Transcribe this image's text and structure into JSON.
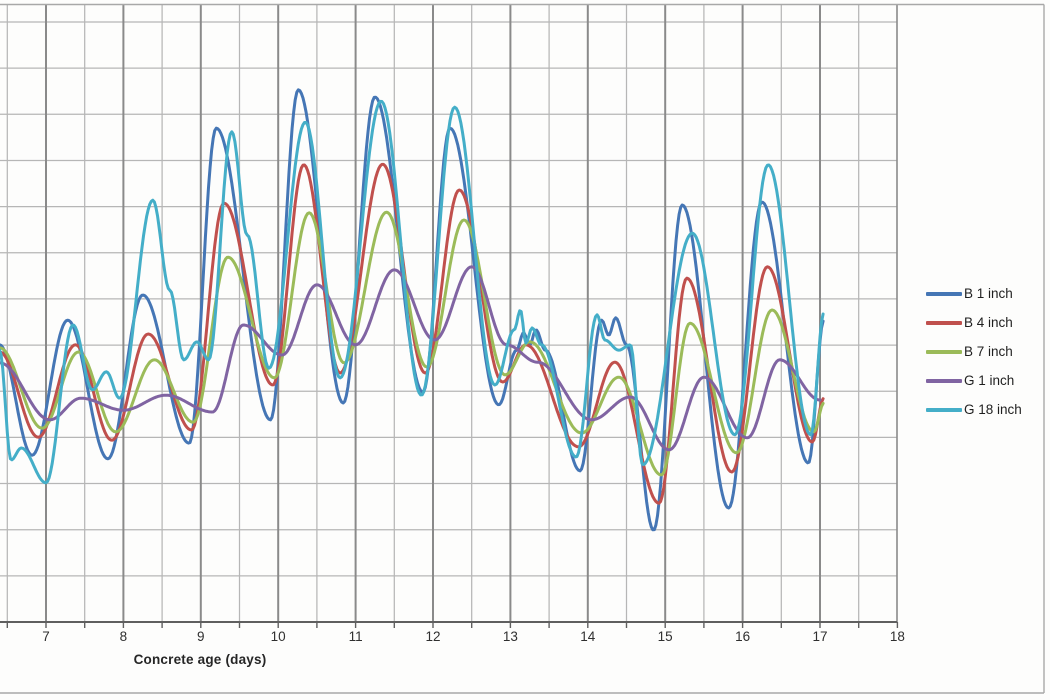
{
  "chart_data": {
    "type": "line",
    "title": "",
    "xlabel": "Concrete age (days)",
    "ylabel": "",
    "x_axis": {
      "ticks": [
        "7",
        "8",
        "9",
        "10",
        "11",
        "12",
        "13",
        "14",
        "15",
        "16",
        "17",
        "18"
      ],
      "minor_step": 0.5,
      "visible_range": [
        6.4,
        18
      ],
      "note": "left portion of chart cropped out of frame"
    },
    "y_axis": {
      "visible": false,
      "units": "normalized 0-100 (y-axis labels cropped out of frame)",
      "gridlines": true
    },
    "legend_position": "right",
    "grid": true,
    "colors": {
      "major_grid": "#8a8a8a",
      "minor_grid": "#b6b6b6",
      "axis": "#5f5f5f",
      "border": "#a8a8a8",
      "tick_label": "#2f2f2f"
    },
    "series": [
      {
        "name": "B 1 inch",
        "color": "#4576B5",
        "points": [
          [
            6.4,
            46.2
          ],
          [
            6.82,
            27.8
          ],
          [
            7.28,
            50.3
          ],
          [
            7.8,
            27.2
          ],
          [
            8.25,
            54.5
          ],
          [
            8.85,
            29.8
          ],
          [
            9.2,
            82.3
          ],
          [
            9.9,
            33.7
          ],
          [
            10.26,
            88.7
          ],
          [
            10.84,
            36.5
          ],
          [
            11.25,
            87.5
          ],
          [
            11.87,
            38.3
          ],
          [
            12.22,
            82.3
          ],
          [
            12.85,
            36.2
          ],
          [
            13.08,
            45.3
          ],
          [
            13.17,
            48.2
          ],
          [
            13.25,
            46.2
          ],
          [
            13.33,
            48.7
          ],
          [
            13.45,
            45.3
          ],
          [
            13.9,
            25.2
          ],
          [
            14.18,
            50.3
          ],
          [
            14.27,
            47.8
          ],
          [
            14.36,
            50.7
          ],
          [
            14.5,
            46.2
          ],
          [
            14.85,
            15.3
          ],
          [
            15.22,
            69.5
          ],
          [
            15.82,
            19.0
          ],
          [
            16.25,
            70.0
          ],
          [
            16.85,
            26.5
          ],
          [
            17.05,
            50.3
          ]
        ]
      },
      {
        "name": "B 4 inch",
        "color": "#C0504D",
        "points": [
          [
            6.4,
            45.0
          ],
          [
            6.9,
            30.8
          ],
          [
            7.38,
            46.2
          ],
          [
            7.85,
            30.3
          ],
          [
            8.32,
            48.0
          ],
          [
            8.88,
            32.0
          ],
          [
            9.3,
            69.8
          ],
          [
            9.93,
            39.5
          ],
          [
            10.33,
            76.2
          ],
          [
            10.8,
            41.5
          ],
          [
            11.35,
            76.3
          ],
          [
            11.9,
            41.5
          ],
          [
            12.34,
            72.0
          ],
          [
            12.9,
            40.0
          ],
          [
            13.2,
            46.2
          ],
          [
            13.88,
            29.2
          ],
          [
            14.35,
            43.3
          ],
          [
            14.92,
            19.8
          ],
          [
            15.28,
            57.3
          ],
          [
            15.86,
            25.0
          ],
          [
            16.32,
            59.2
          ],
          [
            16.9,
            30.0
          ],
          [
            17.05,
            37.3
          ]
        ]
      },
      {
        "name": "B 7 inch",
        "color": "#9BBB59",
        "points": [
          [
            6.4,
            45.7
          ],
          [
            6.95,
            32.3
          ],
          [
            7.42,
            45.0
          ],
          [
            7.9,
            31.7
          ],
          [
            8.4,
            43.7
          ],
          [
            8.9,
            33.3
          ],
          [
            9.35,
            60.8
          ],
          [
            9.95,
            40.7
          ],
          [
            10.4,
            68.2
          ],
          [
            10.85,
            43.2
          ],
          [
            11.4,
            68.3
          ],
          [
            11.92,
            42.5
          ],
          [
            12.4,
            67.0
          ],
          [
            12.93,
            41.2
          ],
          [
            13.25,
            46.7
          ],
          [
            13.92,
            31.5
          ],
          [
            14.4,
            40.8
          ],
          [
            14.95,
            24.5
          ],
          [
            15.32,
            49.8
          ],
          [
            15.92,
            28.2
          ],
          [
            16.38,
            52.0
          ],
          [
            16.92,
            31.7
          ],
          [
            17.05,
            36.5
          ]
        ]
      },
      {
        "name": "G 1 inch",
        "color": "#8064A2",
        "points": [
          [
            6.4,
            43.2
          ],
          [
            7.05,
            33.7
          ],
          [
            7.45,
            37.3
          ],
          [
            8.0,
            35.3
          ],
          [
            8.55,
            37.8
          ],
          [
            9.15,
            35.0
          ],
          [
            9.55,
            49.5
          ],
          [
            10.05,
            44.5
          ],
          [
            10.5,
            56.2
          ],
          [
            11.0,
            46.2
          ],
          [
            11.5,
            58.7
          ],
          [
            12.02,
            47.0
          ],
          [
            12.5,
            59.2
          ],
          [
            12.95,
            46.2
          ],
          [
            13.35,
            43.3
          ],
          [
            14.05,
            33.7
          ],
          [
            14.55,
            37.5
          ],
          [
            15.05,
            28.7
          ],
          [
            15.5,
            40.8
          ],
          [
            16.06,
            30.7
          ],
          [
            16.48,
            43.7
          ],
          [
            17.0,
            37.0
          ]
        ]
      },
      {
        "name": "G 18 inch",
        "color": "#44AEC8",
        "points": [
          [
            6.4,
            45.3
          ],
          [
            6.55,
            27.0
          ],
          [
            6.68,
            29.0
          ],
          [
            7.0,
            23.2
          ],
          [
            7.35,
            49.5
          ],
          [
            7.6,
            38.7
          ],
          [
            7.78,
            41.7
          ],
          [
            7.95,
            37.3
          ],
          [
            8.38,
            70.3
          ],
          [
            8.6,
            55.3
          ],
          [
            8.78,
            43.7
          ],
          [
            8.95,
            46.7
          ],
          [
            9.1,
            43.7
          ],
          [
            9.4,
            81.7
          ],
          [
            9.6,
            64.5
          ],
          [
            9.88,
            42.3
          ],
          [
            10.35,
            83.3
          ],
          [
            10.8,
            40.7
          ],
          [
            11.33,
            86.8
          ],
          [
            11.85,
            37.8
          ],
          [
            12.28,
            85.8
          ],
          [
            12.8,
            39.5
          ],
          [
            13.05,
            48.7
          ],
          [
            13.13,
            52.0
          ],
          [
            13.2,
            46.5
          ],
          [
            13.28,
            49.0
          ],
          [
            13.4,
            46.2
          ],
          [
            13.85,
            27.5
          ],
          [
            14.12,
            51.2
          ],
          [
            14.22,
            47.0
          ],
          [
            14.4,
            45.3
          ],
          [
            14.55,
            46.2
          ],
          [
            14.71,
            26.2
          ],
          [
            15.35,
            64.8
          ],
          [
            15.9,
            31.2
          ],
          [
            16.33,
            76.2
          ],
          [
            16.88,
            31.2
          ],
          [
            17.05,
            51.5
          ]
        ]
      }
    ]
  }
}
